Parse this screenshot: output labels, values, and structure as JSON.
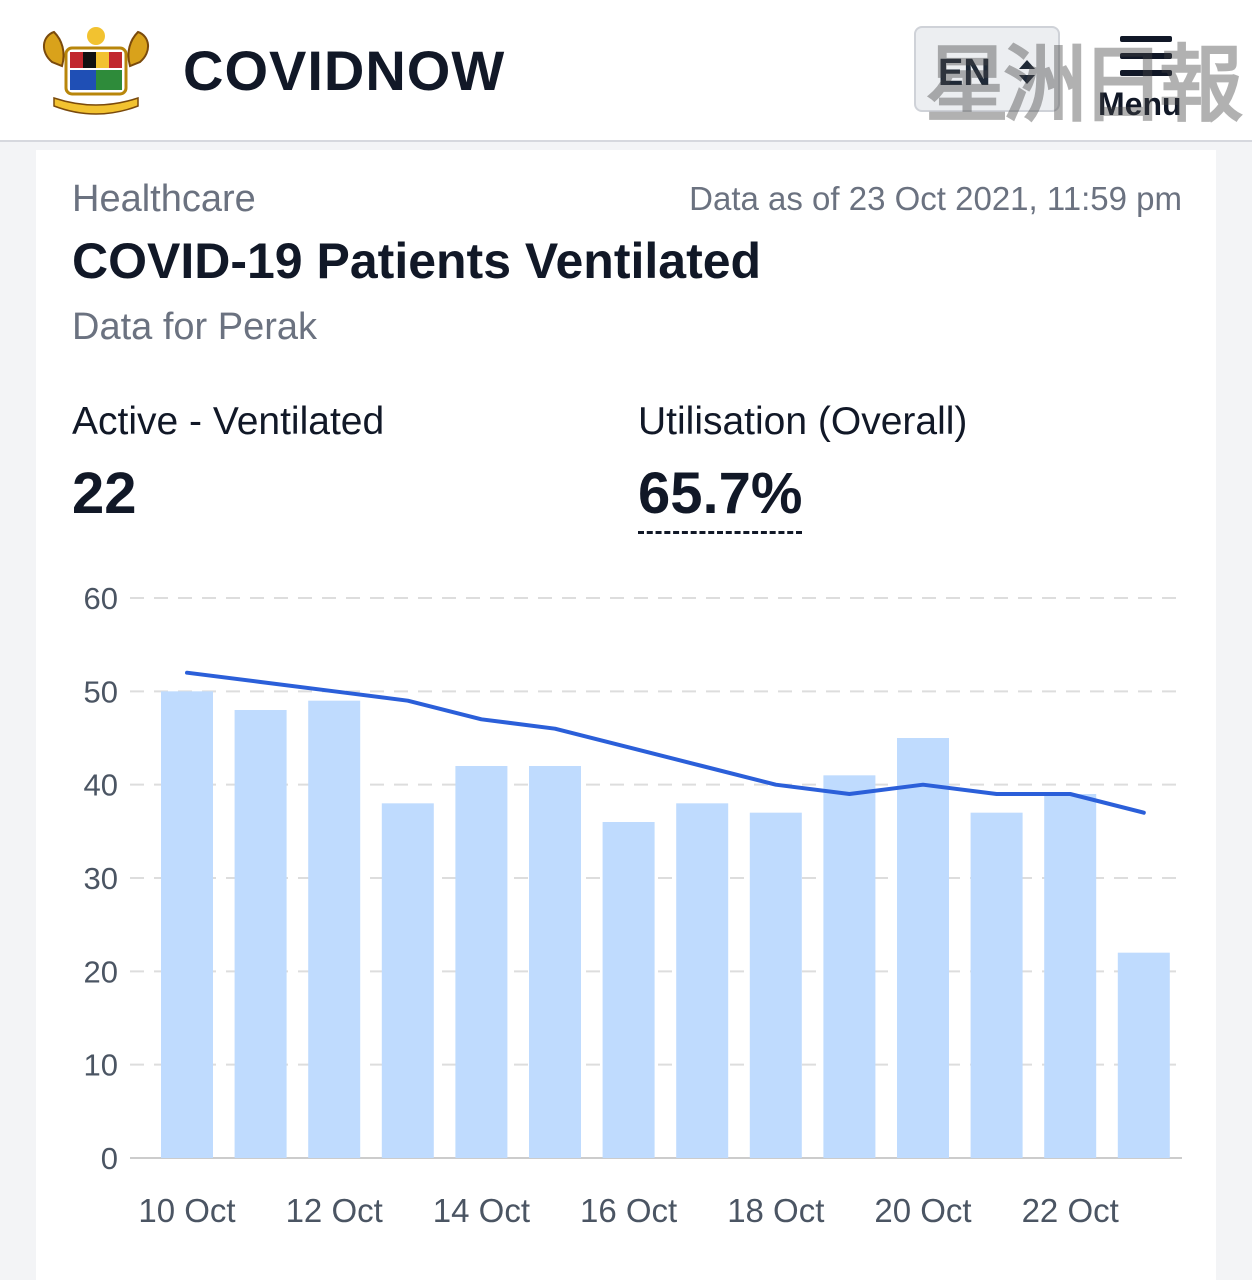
{
  "header": {
    "brand": "COVIDNOW",
    "language": "EN",
    "menu_label": "Menu",
    "watermark": "星洲日報",
    "icons": {
      "logo": "coat-of-arms-icon",
      "lang": "sort-arrows-icon",
      "menu": "hamburger-icon"
    }
  },
  "card": {
    "category": "Healthcare",
    "as_of": "Data as of 23 Oct 2021, 11:59 pm",
    "title": "COVID-19 Patients Ventilated",
    "subtitle": "Data for Perak",
    "stats": {
      "active_label": "Active - Ventilated",
      "active_value": "22",
      "util_label": "Utilisation (Overall)",
      "util_value": "65.7%"
    }
  },
  "chart_data": {
    "type": "bar",
    "dates": [
      "10 Oct",
      "11 Oct",
      "12 Oct",
      "13 Oct",
      "14 Oct",
      "15 Oct",
      "16 Oct",
      "17 Oct",
      "18 Oct",
      "19 Oct",
      "20 Oct",
      "21 Oct",
      "22 Oct",
      "23 Oct"
    ],
    "x_tick_labels": [
      "10 Oct",
      "12 Oct",
      "14 Oct",
      "16 Oct",
      "18 Oct",
      "20 Oct",
      "22 Oct"
    ],
    "y_ticks": [
      0,
      10,
      20,
      30,
      40,
      50,
      60
    ],
    "ylim": [
      0,
      60
    ],
    "grid": true,
    "series": [
      {
        "type": "bar",
        "values": [
          50,
          48,
          49,
          38,
          42,
          42,
          36,
          38,
          37,
          41,
          45,
          37,
          39,
          22
        ],
        "color": "#bfdbfe"
      },
      {
        "type": "line",
        "values": [
          52,
          51,
          50,
          49,
          47,
          46,
          44,
          42,
          40,
          39,
          40,
          39,
          39,
          37
        ],
        "color": "#2b5fd9"
      }
    ]
  }
}
